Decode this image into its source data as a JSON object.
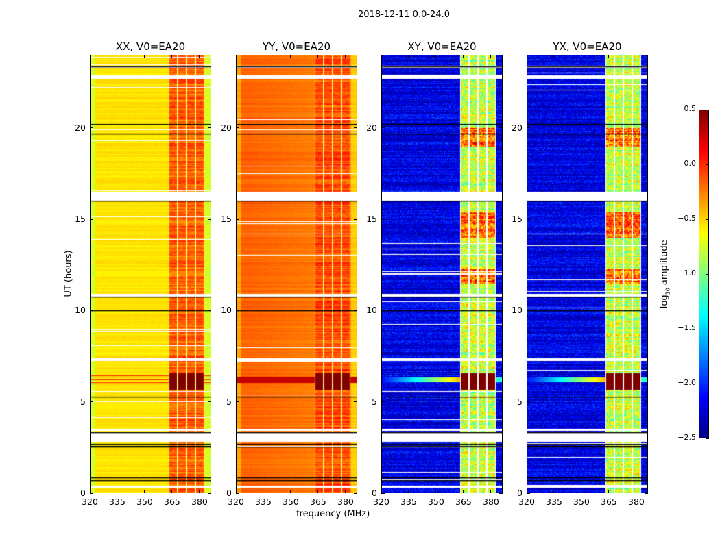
{
  "chart_data": {
    "type": "heatmap",
    "title": "2018-12-11 0.0-24.0",
    "xlabel": "frequency (MHz)",
    "ylabel": "UT (hours)",
    "xlim": [
      320,
      386.4
    ],
    "ylim": [
      0,
      24
    ],
    "xticks": [
      320,
      335,
      350,
      365,
      380
    ],
    "xtick_labels": [
      "320",
      "335",
      "350",
      "365",
      "380"
    ],
    "yticks": [
      0,
      5,
      10,
      15,
      20
    ],
    "ytick_labels": [
      "0",
      "5",
      "10",
      "15",
      "20"
    ],
    "panels": [
      {
        "title": "XX, V0=EA20",
        "base_level": -0.55,
        "band_level": -0.15
      },
      {
        "title": "YY, V0=EA20",
        "base_level": -0.22,
        "band_level": -0.1
      },
      {
        "title": "XY, V0=EA20",
        "base_level": -2.2,
        "band_level": -0.8
      },
      {
        "title": "YX, V0=EA20",
        "base_level": -2.2,
        "band_level": -0.8
      }
    ],
    "rfi_subbands_mhz": [
      [
        363.5,
        367.5
      ],
      [
        368.3,
        372.3
      ],
      [
        373.1,
        377.1
      ],
      [
        377.9,
        382.2
      ]
    ],
    "strong_rfi_hours": [
      5.7,
      6.6
    ],
    "flagged_hours": [
      [
        0.3,
        0.45
      ],
      [
        2.85,
        3.3
      ],
      [
        3.45,
        3.55
      ],
      [
        7.25,
        7.42
      ],
      [
        10.78,
        10.95
      ],
      [
        16.05,
        16.5
      ],
      [
        22.7,
        22.88
      ],
      [
        23.3,
        23.4
      ]
    ],
    "black_line_hours": [
      0.7,
      0.85,
      2.55,
      2.6,
      2.7,
      3.32,
      5.3,
      10.0,
      10.75,
      16.0,
      19.7,
      20.2,
      23.35
    ],
    "colorbar": {
      "label_main": "log",
      "label_sub": "10",
      "label_rest": " amplitude",
      "range": [
        -2.5,
        0.5
      ],
      "ticks": [
        0.5,
        0.0,
        -0.5,
        -1.0,
        -1.5,
        -2.0,
        -2.5
      ],
      "tick_labels": [
        "0.5",
        "0.0",
        "−0.5",
        "−1.0",
        "−1.5",
        "−2.0",
        "−2.5"
      ],
      "colormap": "jet"
    }
  }
}
